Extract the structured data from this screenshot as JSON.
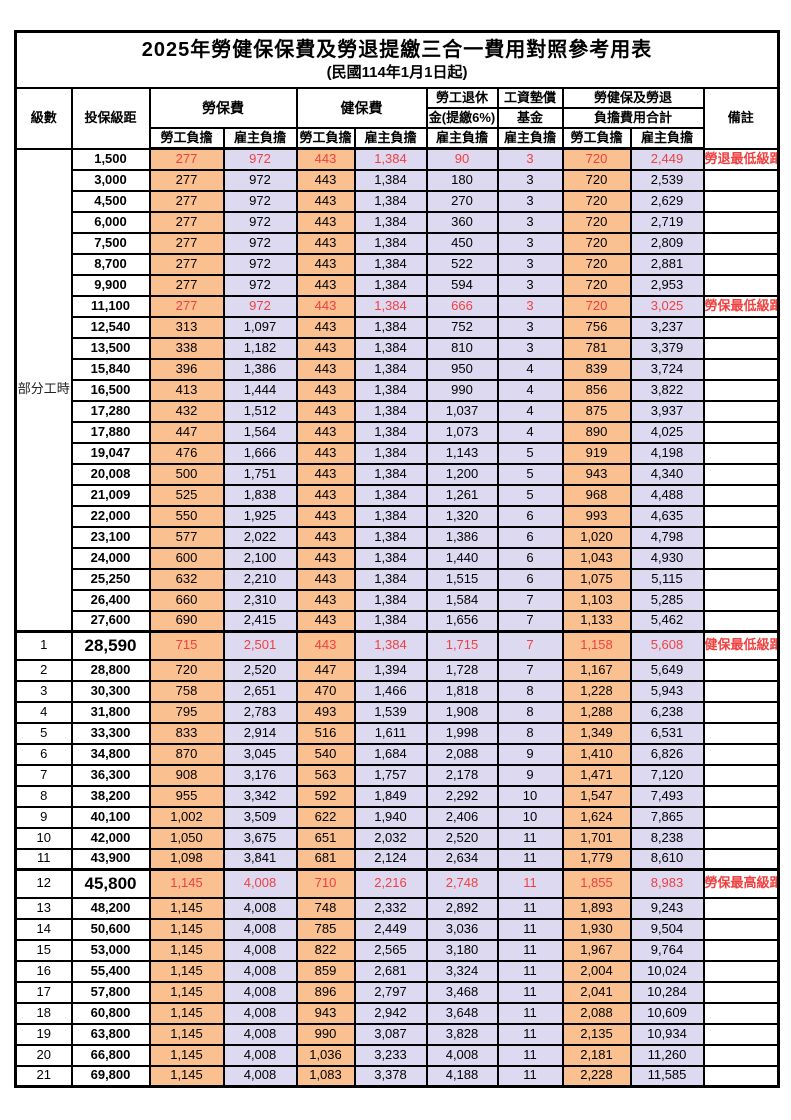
{
  "title": "2025年勞健保保費及勞退提繳三合一費用對照參考用表",
  "subtitle": "(民國114年1月1日起)",
  "header": {
    "grade": "級數",
    "bracket": "投保級距",
    "labor_ins": "勞保費",
    "health_ins": "健保費",
    "pension_l1": "勞工退休",
    "pension_l2": "金(提繳6%)",
    "wage_fund_l1": "工資墊償",
    "wage_fund_l2": "基金",
    "total_l1": "勞健保及勞退",
    "total_l2": "負擔費用合計",
    "remark": "備註",
    "employee": "勞工負擔",
    "employer": "雇主負擔"
  },
  "part_time_label": "部分工時",
  "colors": {
    "employee_bg": "#FAC090",
    "employer_bg": "#DDD9F0",
    "highlight_red": "#F04040",
    "border": "#000000"
  },
  "rows": [
    {
      "bracket": "1,500",
      "values": [
        "277",
        "972",
        "443",
        "1,384",
        "90",
        "3",
        "720",
        "2,449"
      ],
      "remark": "勞退最低級距",
      "red": true
    },
    {
      "bracket": "3,000",
      "values": [
        "277",
        "972",
        "443",
        "1,384",
        "180",
        "3",
        "720",
        "2,539"
      ]
    },
    {
      "bracket": "4,500",
      "values": [
        "277",
        "972",
        "443",
        "1,384",
        "270",
        "3",
        "720",
        "2,629"
      ]
    },
    {
      "bracket": "6,000",
      "values": [
        "277",
        "972",
        "443",
        "1,384",
        "360",
        "3",
        "720",
        "2,719"
      ]
    },
    {
      "bracket": "7,500",
      "values": [
        "277",
        "972",
        "443",
        "1,384",
        "450",
        "3",
        "720",
        "2,809"
      ]
    },
    {
      "bracket": "8,700",
      "values": [
        "277",
        "972",
        "443",
        "1,384",
        "522",
        "3",
        "720",
        "2,881"
      ]
    },
    {
      "bracket": "9,900",
      "values": [
        "277",
        "972",
        "443",
        "1,384",
        "594",
        "3",
        "720",
        "2,953"
      ]
    },
    {
      "bracket": "11,100",
      "values": [
        "277",
        "972",
        "443",
        "1,384",
        "666",
        "3",
        "720",
        "3,025"
      ],
      "remark": "勞保最低級距",
      "red": true
    },
    {
      "bracket": "12,540",
      "values": [
        "313",
        "1,097",
        "443",
        "1,384",
        "752",
        "3",
        "756",
        "3,237"
      ]
    },
    {
      "bracket": "13,500",
      "values": [
        "338",
        "1,182",
        "443",
        "1,384",
        "810",
        "3",
        "781",
        "3,379"
      ]
    },
    {
      "bracket": "15,840",
      "values": [
        "396",
        "1,386",
        "443",
        "1,384",
        "950",
        "4",
        "839",
        "3,724"
      ]
    },
    {
      "bracket": "16,500",
      "values": [
        "413",
        "1,444",
        "443",
        "1,384",
        "990",
        "4",
        "856",
        "3,822"
      ]
    },
    {
      "bracket": "17,280",
      "values": [
        "432",
        "1,512",
        "443",
        "1,384",
        "1,037",
        "4",
        "875",
        "3,937"
      ]
    },
    {
      "bracket": "17,880",
      "values": [
        "447",
        "1,564",
        "443",
        "1,384",
        "1,073",
        "4",
        "890",
        "4,025"
      ]
    },
    {
      "bracket": "19,047",
      "values": [
        "476",
        "1,666",
        "443",
        "1,384",
        "1,143",
        "5",
        "919",
        "4,198"
      ]
    },
    {
      "bracket": "20,008",
      "values": [
        "500",
        "1,751",
        "443",
        "1,384",
        "1,200",
        "5",
        "943",
        "4,340"
      ]
    },
    {
      "bracket": "21,009",
      "values": [
        "525",
        "1,838",
        "443",
        "1,384",
        "1,261",
        "5",
        "968",
        "4,488"
      ]
    },
    {
      "bracket": "22,000",
      "values": [
        "550",
        "1,925",
        "443",
        "1,384",
        "1,320",
        "6",
        "993",
        "4,635"
      ]
    },
    {
      "bracket": "23,100",
      "values": [
        "577",
        "2,022",
        "443",
        "1,384",
        "1,386",
        "6",
        "1,020",
        "4,798"
      ]
    },
    {
      "bracket": "24,000",
      "values": [
        "600",
        "2,100",
        "443",
        "1,384",
        "1,440",
        "6",
        "1,043",
        "4,930"
      ]
    },
    {
      "bracket": "25,250",
      "values": [
        "632",
        "2,210",
        "443",
        "1,384",
        "1,515",
        "6",
        "1,075",
        "5,115"
      ]
    },
    {
      "bracket": "26,400",
      "values": [
        "660",
        "2,310",
        "443",
        "1,384",
        "1,584",
        "7",
        "1,103",
        "5,285"
      ]
    },
    {
      "bracket": "27,600",
      "values": [
        "690",
        "2,415",
        "443",
        "1,384",
        "1,656",
        "7",
        "1,133",
        "5,462"
      ]
    },
    {
      "grade": "1",
      "bracket": "28,590",
      "values": [
        "715",
        "2,501",
        "443",
        "1,384",
        "1,715",
        "7",
        "1,158",
        "5,608"
      ],
      "remark": "健保最低級距",
      "red": true,
      "big": true,
      "tall": true,
      "thick_top": true
    },
    {
      "grade": "2",
      "bracket": "28,800",
      "values": [
        "720",
        "2,520",
        "447",
        "1,394",
        "1,728",
        "7",
        "1,167",
        "5,649"
      ]
    },
    {
      "grade": "3",
      "bracket": "30,300",
      "values": [
        "758",
        "2,651",
        "470",
        "1,466",
        "1,818",
        "8",
        "1,228",
        "5,943"
      ]
    },
    {
      "grade": "4",
      "bracket": "31,800",
      "values": [
        "795",
        "2,783",
        "493",
        "1,539",
        "1,908",
        "8",
        "1,288",
        "6,238"
      ]
    },
    {
      "grade": "5",
      "bracket": "33,300",
      "values": [
        "833",
        "2,914",
        "516",
        "1,611",
        "1,998",
        "8",
        "1,349",
        "6,531"
      ]
    },
    {
      "grade": "6",
      "bracket": "34,800",
      "values": [
        "870",
        "3,045",
        "540",
        "1,684",
        "2,088",
        "9",
        "1,410",
        "6,826"
      ]
    },
    {
      "grade": "7",
      "bracket": "36,300",
      "values": [
        "908",
        "3,176",
        "563",
        "1,757",
        "2,178",
        "9",
        "1,471",
        "7,120"
      ]
    },
    {
      "grade": "8",
      "bracket": "38,200",
      "values": [
        "955",
        "3,342",
        "592",
        "1,849",
        "2,292",
        "10",
        "1,547",
        "7,493"
      ]
    },
    {
      "grade": "9",
      "bracket": "40,100",
      "values": [
        "1,002",
        "3,509",
        "622",
        "1,940",
        "2,406",
        "10",
        "1,624",
        "7,865"
      ]
    },
    {
      "grade": "10",
      "bracket": "42,000",
      "values": [
        "1,050",
        "3,675",
        "651",
        "2,032",
        "2,520",
        "11",
        "1,701",
        "8,238"
      ]
    },
    {
      "grade": "11",
      "bracket": "43,900",
      "values": [
        "1,098",
        "3,841",
        "681",
        "2,124",
        "2,634",
        "11",
        "1,779",
        "8,610"
      ]
    },
    {
      "grade": "12",
      "bracket": "45,800",
      "values": [
        "1,145",
        "4,008",
        "710",
        "2,216",
        "2,748",
        "11",
        "1,855",
        "8,983"
      ],
      "remark": "勞保最高級距",
      "red": true,
      "big": true,
      "tall": true,
      "thick_top": true
    },
    {
      "grade": "13",
      "bracket": "48,200",
      "values": [
        "1,145",
        "4,008",
        "748",
        "2,332",
        "2,892",
        "11",
        "1,893",
        "9,243"
      ]
    },
    {
      "grade": "14",
      "bracket": "50,600",
      "values": [
        "1,145",
        "4,008",
        "785",
        "2,449",
        "3,036",
        "11",
        "1,930",
        "9,504"
      ]
    },
    {
      "grade": "15",
      "bracket": "53,000",
      "values": [
        "1,145",
        "4,008",
        "822",
        "2,565",
        "3,180",
        "11",
        "1,967",
        "9,764"
      ]
    },
    {
      "grade": "16",
      "bracket": "55,400",
      "values": [
        "1,145",
        "4,008",
        "859",
        "2,681",
        "3,324",
        "11",
        "2,004",
        "10,024"
      ]
    },
    {
      "grade": "17",
      "bracket": "57,800",
      "values": [
        "1,145",
        "4,008",
        "896",
        "2,797",
        "3,468",
        "11",
        "2,041",
        "10,284"
      ]
    },
    {
      "grade": "18",
      "bracket": "60,800",
      "values": [
        "1,145",
        "4,008",
        "943",
        "2,942",
        "3,648",
        "11",
        "2,088",
        "10,609"
      ]
    },
    {
      "grade": "19",
      "bracket": "63,800",
      "values": [
        "1,145",
        "4,008",
        "990",
        "3,087",
        "3,828",
        "11",
        "2,135",
        "10,934"
      ]
    },
    {
      "grade": "20",
      "bracket": "66,800",
      "values": [
        "1,145",
        "4,008",
        "1,036",
        "3,233",
        "4,008",
        "11",
        "2,181",
        "11,260"
      ]
    },
    {
      "grade": "21",
      "bracket": "69,800",
      "values": [
        "1,145",
        "4,008",
        "1,083",
        "3,378",
        "4,188",
        "11",
        "2,228",
        "11,585"
      ]
    }
  ]
}
